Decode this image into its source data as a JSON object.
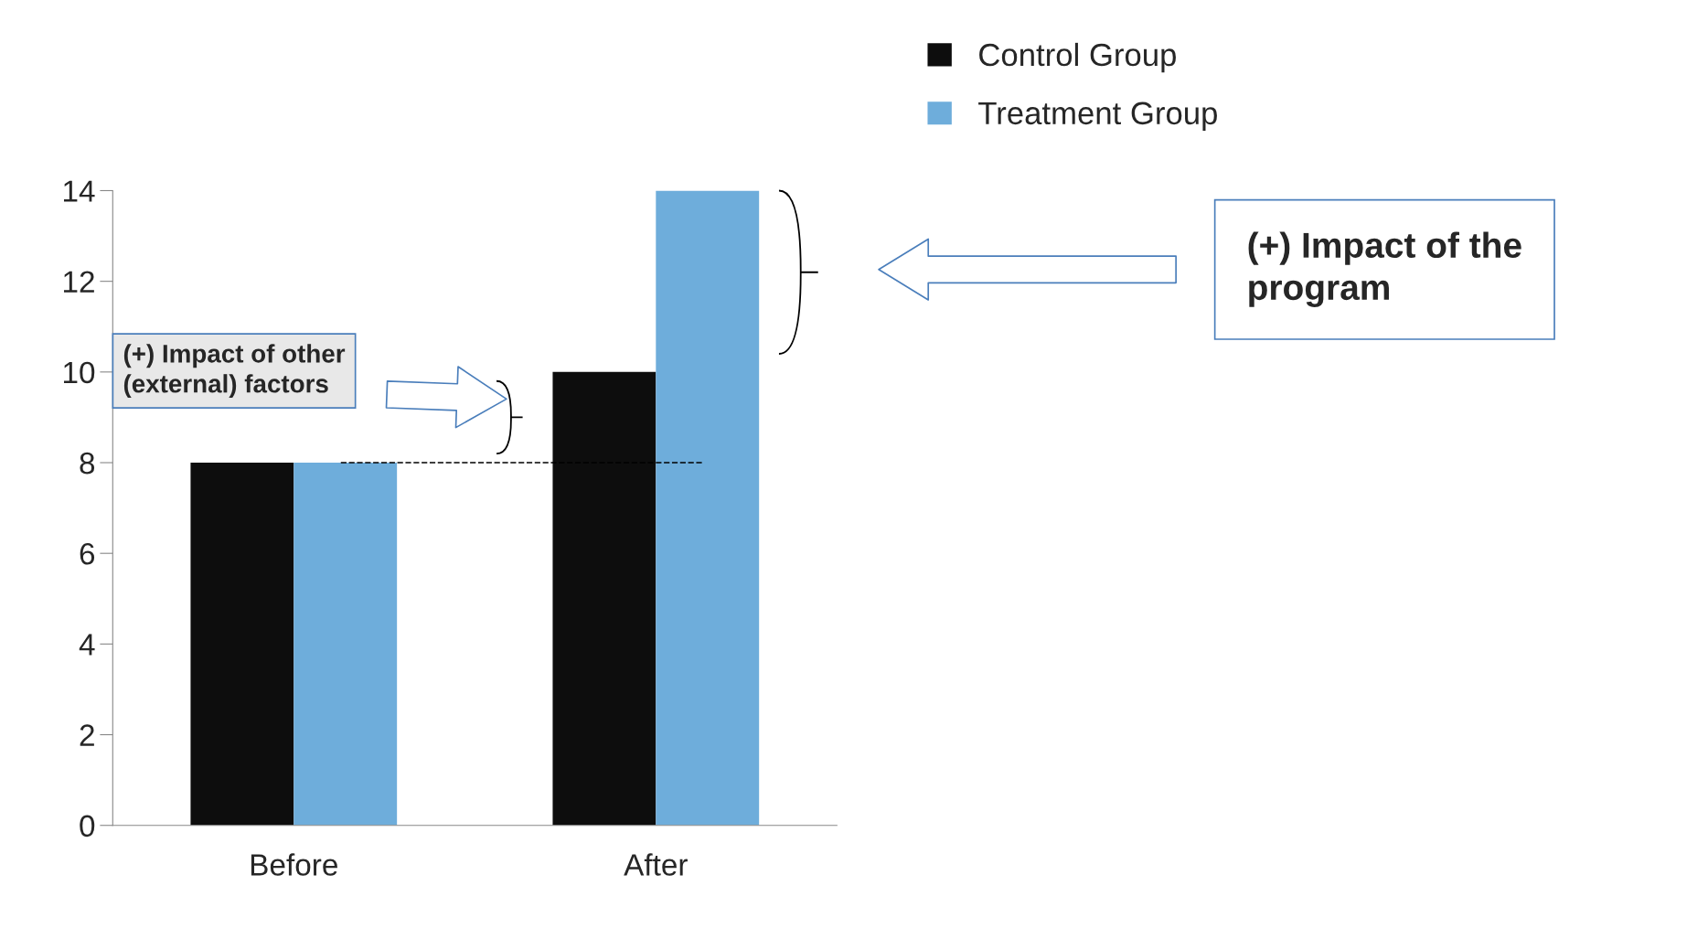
{
  "chart_data": {
    "type": "bar",
    "categories": [
      "Before",
      "After"
    ],
    "series": [
      {
        "name": "Control Group",
        "color": "#0d0d0d",
        "values": [
          8,
          10
        ]
      },
      {
        "name": "Treatment Group",
        "color": "#6eaddb",
        "values": [
          8,
          14
        ]
      }
    ],
    "ylim": [
      0,
      14
    ],
    "yticks": [
      0,
      2,
      4,
      6,
      8,
      10,
      12,
      14
    ],
    "grid": false,
    "legend": "top right",
    "ref_lines": [
      {
        "axis": "y",
        "value": 8,
        "color": "#000000",
        "line_style": "dashed"
      }
    ],
    "annotations": [
      "(+) Impact of other\n(external) factors",
      "(+) Impact of the\nprogram"
    ]
  }
}
